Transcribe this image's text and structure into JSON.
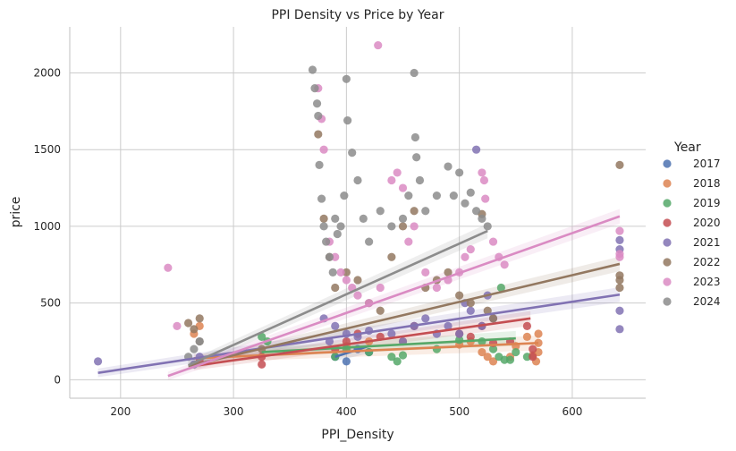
{
  "chart_data": {
    "type": "scatter",
    "title": "PPI Density vs Price by Year",
    "xlabel": "PPI_Density",
    "ylabel": "price",
    "xlim": [
      155,
      665
    ],
    "ylim": [
      -120,
      2300
    ],
    "x_ticks": [
      200,
      300,
      400,
      500,
      600
    ],
    "y_ticks": [
      0,
      500,
      1000,
      1500,
      2000
    ],
    "grid": true,
    "legend_title": "Year",
    "legend_position": "right",
    "series": [
      {
        "name": "2017",
        "color": "#4c72b0",
        "points": [
          [
            390,
            150
          ],
          [
            400,
            120
          ],
          [
            410,
            200
          ],
          [
            420,
            180
          ]
        ],
        "trend": [
          [
            390,
            150
          ],
          [
            420,
            220
          ]
        ]
      },
      {
        "name": "2018",
        "color": "#dd8452",
        "points": [
          [
            270,
            350
          ],
          [
            265,
            300
          ],
          [
            400,
            220
          ],
          [
            420,
            250
          ],
          [
            450,
            250
          ],
          [
            500,
            230
          ],
          [
            520,
            180
          ],
          [
            525,
            150
          ],
          [
            530,
            120
          ],
          [
            545,
            150
          ],
          [
            560,
            280
          ],
          [
            565,
            160
          ],
          [
            570,
            300
          ],
          [
            570,
            240
          ],
          [
            568,
            120
          ],
          [
            570,
            180
          ],
          [
            550,
            220
          ],
          [
            510,
            250
          ]
        ],
        "trend": [
          [
            265,
            140
          ],
          [
            570,
            240
          ]
        ]
      },
      {
        "name": "2019",
        "color": "#55a868",
        "points": [
          [
            325,
            280
          ],
          [
            330,
            250
          ],
          [
            390,
            150
          ],
          [
            400,
            200
          ],
          [
            420,
            180
          ],
          [
            440,
            150
          ],
          [
            445,
            120
          ],
          [
            450,
            160
          ],
          [
            480,
            200
          ],
          [
            500,
            260
          ],
          [
            520,
            250
          ],
          [
            530,
            200
          ],
          [
            535,
            150
          ],
          [
            540,
            130
          ],
          [
            550,
            180
          ],
          [
            560,
            150
          ],
          [
            537,
            600
          ],
          [
            545,
            130
          ]
        ],
        "trend": [
          [
            325,
            180
          ],
          [
            550,
            270
          ]
        ]
      },
      {
        "name": "2020",
        "color": "#c44e52",
        "points": [
          [
            270,
            120
          ],
          [
            325,
            100
          ],
          [
            325,
            150
          ],
          [
            390,
            200
          ],
          [
            400,
            250
          ],
          [
            410,
            300
          ],
          [
            430,
            280
          ],
          [
            460,
            350
          ],
          [
            500,
            300
          ],
          [
            510,
            280
          ],
          [
            520,
            350
          ],
          [
            530,
            240
          ],
          [
            560,
            350
          ],
          [
            565,
            150
          ],
          [
            565,
            200
          ],
          [
            545,
            250
          ]
        ],
        "trend": [
          [
            265,
            90
          ],
          [
            563,
            400
          ]
        ]
      },
      {
        "name": "2021",
        "color": "#8172b3",
        "points": [
          [
            180,
            120
          ],
          [
            265,
            100
          ],
          [
            270,
            150
          ],
          [
            380,
            400
          ],
          [
            385,
            250
          ],
          [
            390,
            350
          ],
          [
            400,
            300
          ],
          [
            410,
            280
          ],
          [
            420,
            320
          ],
          [
            440,
            300
          ],
          [
            450,
            250
          ],
          [
            460,
            350
          ],
          [
            470,
            400
          ],
          [
            480,
            300
          ],
          [
            490,
            350
          ],
          [
            500,
            300
          ],
          [
            505,
            500
          ],
          [
            510,
            450
          ],
          [
            515,
            1500
          ],
          [
            520,
            350
          ],
          [
            525,
            550
          ],
          [
            530,
            400
          ],
          [
            642,
            910
          ],
          [
            642,
            850
          ],
          [
            642,
            450
          ],
          [
            642,
            330
          ]
        ],
        "trend": [
          [
            180,
            45
          ],
          [
            642,
            555
          ]
        ]
      },
      {
        "name": "2022",
        "color": "#937860",
        "points": [
          [
            260,
            370
          ],
          [
            265,
            330
          ],
          [
            270,
            400
          ],
          [
            270,
            250
          ],
          [
            325,
            200
          ],
          [
            375,
            1600
          ],
          [
            380,
            1050
          ],
          [
            385,
            800
          ],
          [
            390,
            600
          ],
          [
            400,
            700
          ],
          [
            410,
            650
          ],
          [
            420,
            500
          ],
          [
            430,
            450
          ],
          [
            440,
            800
          ],
          [
            450,
            1000
          ],
          [
            460,
            1100
          ],
          [
            470,
            600
          ],
          [
            480,
            650
          ],
          [
            490,
            700
          ],
          [
            500,
            550
          ],
          [
            510,
            500
          ],
          [
            520,
            1080
          ],
          [
            525,
            450
          ],
          [
            530,
            400
          ],
          [
            642,
            1400
          ],
          [
            642,
            680
          ],
          [
            642,
            650
          ],
          [
            642,
            600
          ]
        ],
        "trend": [
          [
            260,
            90
          ],
          [
            642,
            755
          ]
        ]
      },
      {
        "name": "2023",
        "color": "#da8bc3",
        "points": [
          [
            242,
            730
          ],
          [
            250,
            350
          ],
          [
            375,
            1900
          ],
          [
            378,
            1700
          ],
          [
            380,
            1500
          ],
          [
            385,
            900
          ],
          [
            390,
            800
          ],
          [
            395,
            700
          ],
          [
            400,
            650
          ],
          [
            405,
            600
          ],
          [
            410,
            550
          ],
          [
            420,
            500
          ],
          [
            428,
            2180
          ],
          [
            430,
            600
          ],
          [
            440,
            1300
          ],
          [
            445,
            1350
          ],
          [
            450,
            1250
          ],
          [
            455,
            900
          ],
          [
            460,
            1000
          ],
          [
            470,
            700
          ],
          [
            480,
            600
          ],
          [
            490,
            650
          ],
          [
            500,
            700
          ],
          [
            505,
            800
          ],
          [
            510,
            850
          ],
          [
            520,
            1350
          ],
          [
            522,
            1300
          ],
          [
            523,
            1180
          ],
          [
            530,
            900
          ],
          [
            535,
            800
          ],
          [
            540,
            750
          ],
          [
            642,
            970
          ],
          [
            642,
            820
          ],
          [
            642,
            800
          ]
        ],
        "trend": [
          [
            242,
            25
          ],
          [
            642,
            1065
          ]
        ]
      },
      {
        "name": "2024",
        "color": "#8c8c8c",
        "points": [
          [
            260,
            150
          ],
          [
            265,
            200
          ],
          [
            270,
            250
          ],
          [
            370,
            2020
          ],
          [
            372,
            1900
          ],
          [
            374,
            1800
          ],
          [
            375,
            1720
          ],
          [
            376,
            1400
          ],
          [
            378,
            1180
          ],
          [
            380,
            1000
          ],
          [
            382,
            900
          ],
          [
            385,
            800
          ],
          [
            388,
            700
          ],
          [
            390,
            1050
          ],
          [
            392,
            950
          ],
          [
            395,
            1000
          ],
          [
            398,
            1200
          ],
          [
            400,
            1960
          ],
          [
            401,
            1690
          ],
          [
            405,
            1480
          ],
          [
            410,
            1300
          ],
          [
            415,
            1050
          ],
          [
            420,
            900
          ],
          [
            430,
            1100
          ],
          [
            440,
            1000
          ],
          [
            450,
            1050
          ],
          [
            455,
            1200
          ],
          [
            460,
            2000
          ],
          [
            461,
            1580
          ],
          [
            462,
            1450
          ],
          [
            465,
            1300
          ],
          [
            470,
            1100
          ],
          [
            480,
            1200
          ],
          [
            490,
            1390
          ],
          [
            495,
            1200
          ],
          [
            500,
            1350
          ],
          [
            505,
            1150
          ],
          [
            510,
            1220
          ],
          [
            515,
            1100
          ],
          [
            520,
            1050
          ],
          [
            525,
            1000
          ]
        ],
        "trend": [
          [
            260,
            95
          ],
          [
            525,
            970
          ]
        ]
      }
    ]
  }
}
